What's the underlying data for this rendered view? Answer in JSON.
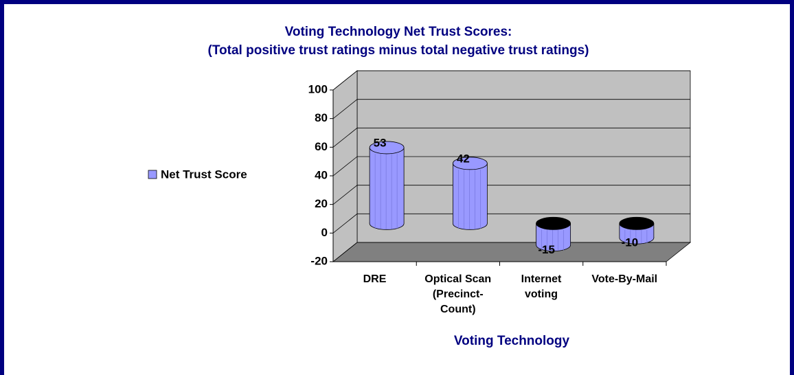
{
  "chart_data": {
    "type": "bar3d",
    "title": "Voting Technology Net Trust Scores:",
    "subtitle": "(Total positive trust ratings minus total negative trust ratings)",
    "x_label": "Voting Technology",
    "categories": [
      "DRE",
      "Optical Scan\n(Precinct-\nCount)",
      "Internet\nvoting",
      "Vote-By-Mail"
    ],
    "series": [
      {
        "name": "Net Trust Score",
        "color": "#9999ff",
        "values": [
          53,
          42,
          -15,
          -10
        ]
      }
    ],
    "ylim": [
      -20,
      100
    ],
    "yticks": [
      -20,
      0,
      20,
      40,
      60,
      80,
      100
    ],
    "grid": true,
    "legend": "left"
  }
}
